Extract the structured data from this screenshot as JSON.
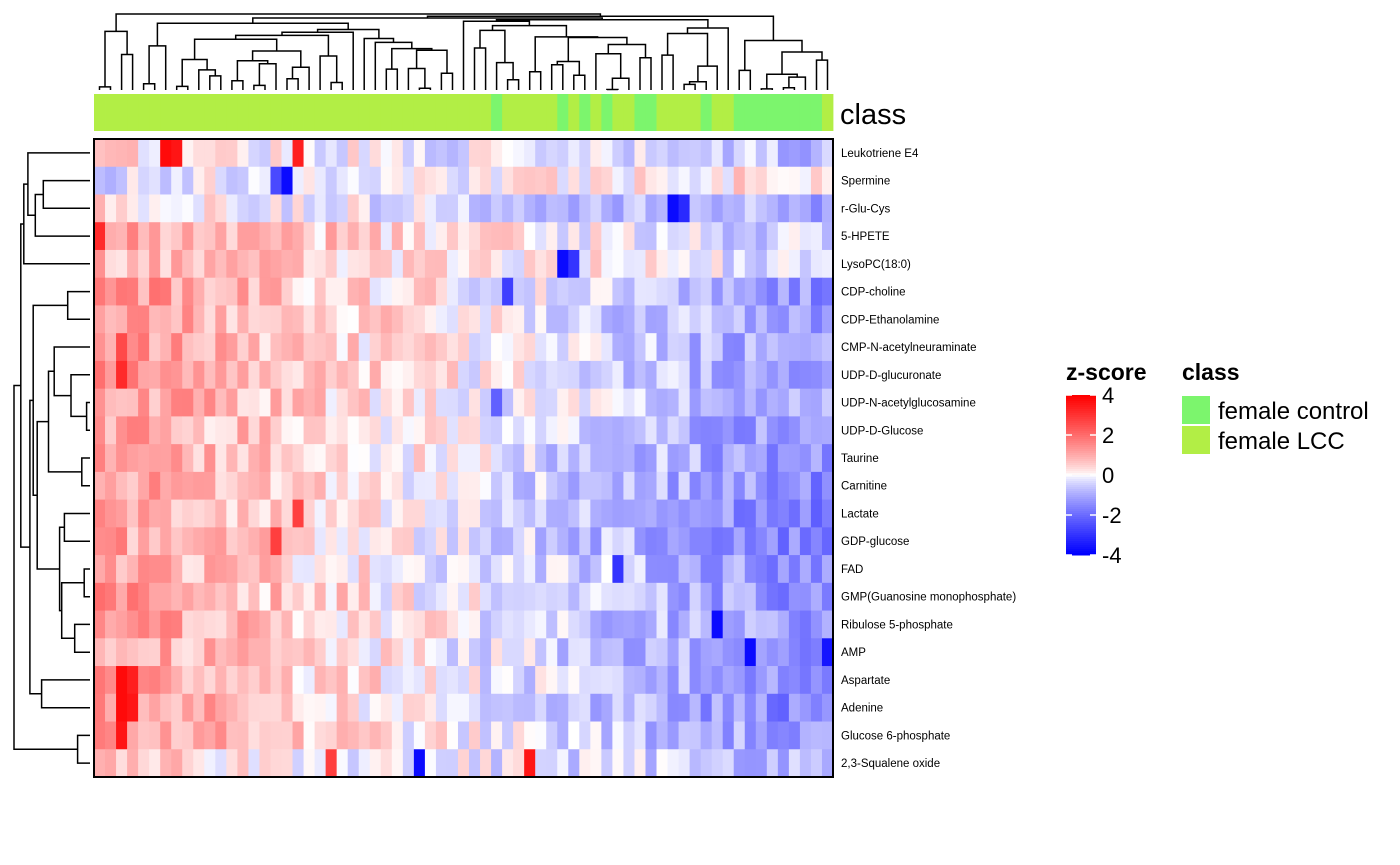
{
  "chart_data": {
    "type": "heatmap",
    "rows": [
      "Leukotriene E4",
      "Spermine",
      "r-Glu-Cys",
      "5-HPETE",
      "LysoPC(18:0)",
      "CDP-choline",
      "CDP-Ethanolamine",
      "CMP-N-acetylneuraminate",
      "UDP-D-glucuronate",
      "UDP-N-acetylglucosamine",
      "UDP-D-Glucose",
      "Taurine",
      "Carnitine",
      "Lactate",
      "GDP-glucose",
      "FAD",
      "GMP(Guanosine monophosphate)",
      "Ribulose 5-phosphate",
      "AMP",
      "Aspartate",
      "Adenine",
      "Glucose 6-phosphate",
      "2,3-Squalene oxide"
    ],
    "n_columns": 67,
    "column_class": [
      "female LCC",
      "female LCC",
      "female LCC",
      "female LCC",
      "female LCC",
      "female LCC",
      "female LCC",
      "female LCC",
      "female LCC",
      "female LCC",
      "female LCC",
      "female LCC",
      "female LCC",
      "female LCC",
      "female LCC",
      "female LCC",
      "female LCC",
      "female LCC",
      "female LCC",
      "female LCC",
      "female LCC",
      "female LCC",
      "female LCC",
      "female LCC",
      "female LCC",
      "female LCC",
      "female LCC",
      "female LCC",
      "female LCC",
      "female LCC",
      "female LCC",
      "female LCC",
      "female LCC",
      "female LCC",
      "female LCC",
      "female LCC",
      "female control",
      "female LCC",
      "female LCC",
      "female LCC",
      "female LCC",
      "female LCC",
      "female control",
      "female LCC",
      "female control",
      "female LCC",
      "female control",
      "female LCC",
      "female LCC",
      "female control",
      "female control",
      "female LCC",
      "female LCC",
      "female LCC",
      "female LCC",
      "female control",
      "female LCC",
      "female LCC",
      "female control",
      "female control",
      "female control",
      "female control",
      "female control",
      "female control",
      "female control",
      "female control",
      "female LCC"
    ],
    "class_annotation_title": "class",
    "color_legend": {
      "title": "z-score",
      "ticks": [
        "4",
        "2",
        "0",
        "-2",
        "-4"
      ],
      "range": [
        -4,
        4
      ],
      "colors": {
        "low": "#0000FF",
        "mid": "#FFFFFF",
        "high": "#FF0000"
      }
    },
    "class_legend": {
      "title": "class",
      "entries": [
        {
          "label": "female control",
          "color": "#7CF56D"
        },
        {
          "label": "female LCC",
          "color": "#B2EE45"
        }
      ]
    },
    "row_profiles": {
      "Leukotriene E4": {
        "start": 0.4,
        "end": -0.8
      },
      "Spermine": {
        "start": -0.3,
        "end": 0.4
      },
      "r-Glu-Cys": {
        "start": 0.3,
        "end": -1.0
      },
      "5-HPETE": {
        "start": 1.2,
        "end": -0.6
      },
      "LysoPC(18:0)": {
        "start": 0.9,
        "end": -0.4
      },
      "CDP-choline": {
        "start": 1.5,
        "end": -1.4
      },
      "CDP-Ethanolamine": {
        "start": 1.4,
        "end": -1.3
      },
      "CMP-N-acetylneuraminate": {
        "start": 1.4,
        "end": -1.3
      },
      "UDP-D-glucuronate": {
        "start": 1.5,
        "end": -1.3
      },
      "UDP-N-acetylglucosamine": {
        "start": 1.3,
        "end": -1.2
      },
      "UDP-D-Glucose": {
        "start": 1.2,
        "end": -1.5
      },
      "Taurine": {
        "start": 1.3,
        "end": -1.5
      },
      "Carnitine": {
        "start": 1.3,
        "end": -1.6
      },
      "Lactate": {
        "start": 1.1,
        "end": -1.8
      },
      "GDP-glucose": {
        "start": 1.2,
        "end": -1.7
      },
      "FAD": {
        "start": 1.2,
        "end": -1.5
      },
      "GMP(Guanosine monophosphate)": {
        "start": 1.4,
        "end": -1.6
      },
      "Ribulose 5-phosphate": {
        "start": 1.4,
        "end": -1.5
      },
      "AMP": {
        "start": 1.2,
        "end": -1.6
      },
      "Aspartate": {
        "start": 1.4,
        "end": -1.6
      },
      "Adenine": {
        "start": 1.4,
        "end": -1.8
      },
      "Glucose 6-phosphate": {
        "start": 1.3,
        "end": -1.4
      },
      "2,3-Squalene oxide": {
        "start": 0.5,
        "end": -0.8
      }
    },
    "notable_cells": [
      {
        "row": "Leukotriene E4",
        "col": 6,
        "value": 3.8
      },
      {
        "row": "Leukotriene E4",
        "col": 7,
        "value": 3.6
      },
      {
        "row": "Leukotriene E4",
        "col": 18,
        "value": 3.4
      },
      {
        "row": "Spermine",
        "col": 17,
        "value": -3.8
      },
      {
        "row": "Spermine",
        "col": 16,
        "value": -2.6
      },
      {
        "row": "r-Glu-Cys",
        "col": 52,
        "value": -3.8
      },
      {
        "row": "r-Glu-Cys",
        "col": 53,
        "value": -3.2
      },
      {
        "row": "5-HPETE",
        "col": 0,
        "value": 3.2
      },
      {
        "row": "LysoPC(18:0)",
        "col": 42,
        "value": -3.8
      },
      {
        "row": "LysoPC(18:0)",
        "col": 43,
        "value": -3.0
      },
      {
        "row": "CDP-choline",
        "col": 37,
        "value": -2.8
      },
      {
        "row": "CMP-N-acetylneuraminate",
        "col": 2,
        "value": 2.6
      },
      {
        "row": "UDP-D-glucuronate",
        "col": 2,
        "value": 3.2
      },
      {
        "row": "UDP-N-acetylglucosamine",
        "col": 36,
        "value": -2.2
      },
      {
        "row": "Lactate",
        "col": 18,
        "value": 2.8
      },
      {
        "row": "GDP-glucose",
        "col": 16,
        "value": 2.8
      },
      {
        "row": "FAD",
        "col": 47,
        "value": -3.0
      },
      {
        "row": "Ribulose 5-phosphate",
        "col": 56,
        "value": -3.8
      },
      {
        "row": "AMP",
        "col": 59,
        "value": -3.8
      },
      {
        "row": "AMP",
        "col": 66,
        "value": -3.6
      },
      {
        "row": "Aspartate",
        "col": 2,
        "value": 3.8
      },
      {
        "row": "Aspartate",
        "col": 3,
        "value": 3.4
      },
      {
        "row": "Adenine",
        "col": 2,
        "value": 3.8
      },
      {
        "row": "Adenine",
        "col": 3,
        "value": 3.6
      },
      {
        "row": "Glucose 6-phosphate",
        "col": 2,
        "value": 3.6
      },
      {
        "row": "2,3-Squalene oxide",
        "col": 29,
        "value": -3.8
      },
      {
        "row": "2,3-Squalene oxide",
        "col": 39,
        "value": 3.6
      },
      {
        "row": "2,3-Squalene oxide",
        "col": 21,
        "value": 2.8
      }
    ]
  }
}
